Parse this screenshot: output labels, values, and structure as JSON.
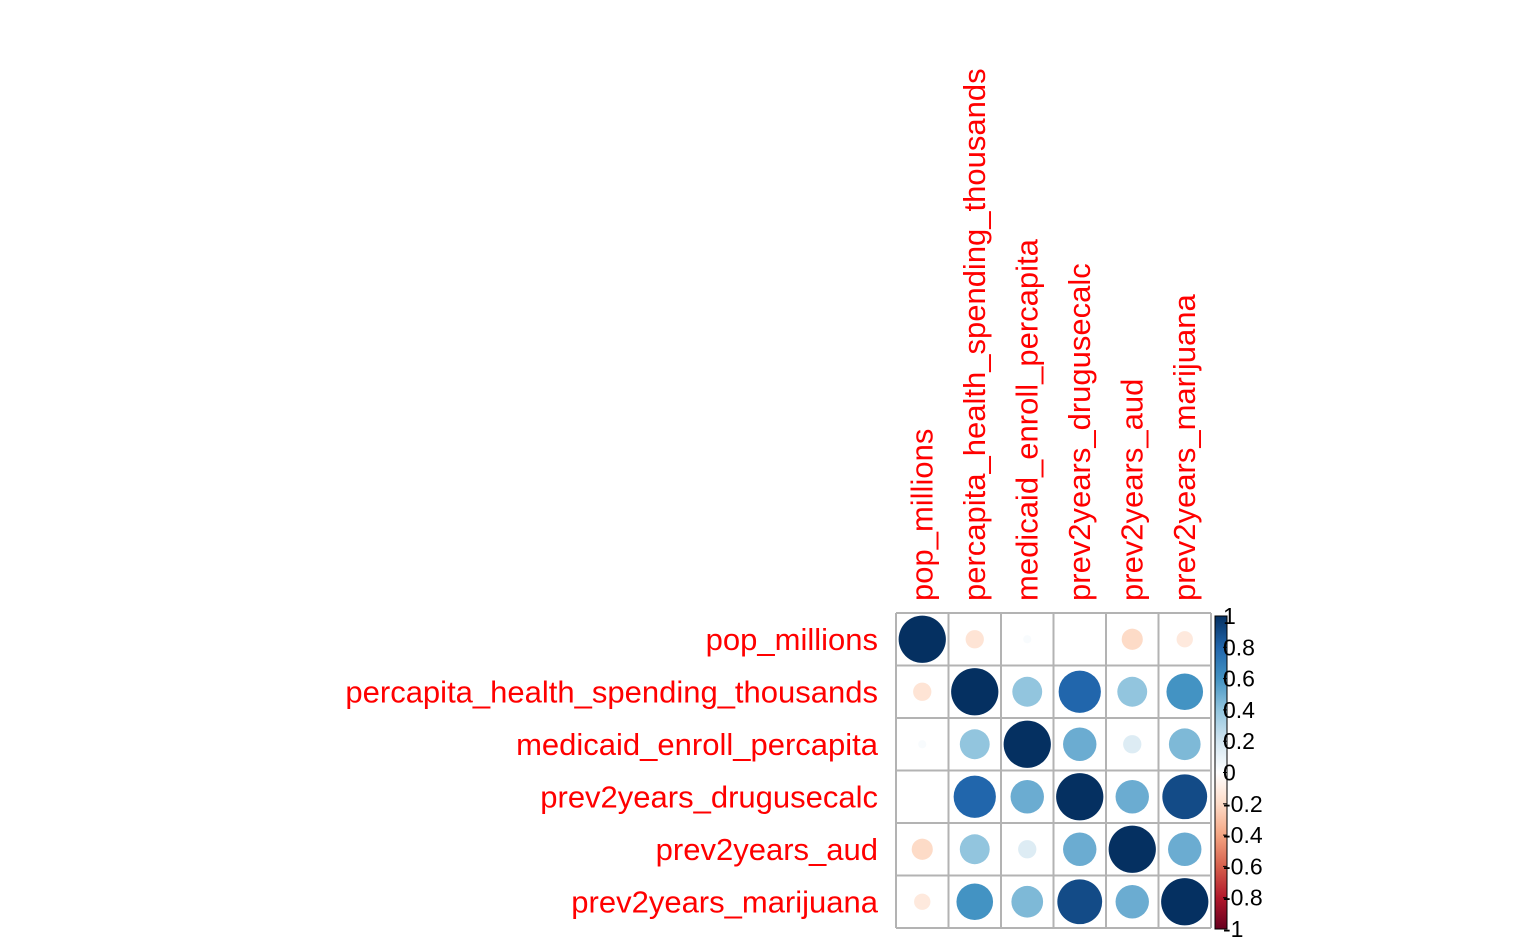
{
  "chart_data": {
    "type": "heatmap",
    "variables": [
      "pop_millions",
      "percapita_health_spending_thousands",
      "medicaid_enroll_percapita",
      "prev2years_drugusecalc",
      "prev2years_aud",
      "prev2years_marijuana"
    ],
    "matrix": [
      [
        1.0,
        -0.15,
        0.03,
        0.0,
        -0.2,
        -0.12
      ],
      [
        -0.15,
        1.0,
        0.4,
        0.8,
        0.4,
        0.6
      ],
      [
        0.03,
        0.4,
        1.0,
        0.5,
        0.15,
        0.45
      ],
      [
        0.0,
        0.8,
        0.5,
        1.0,
        0.5,
        0.9
      ],
      [
        -0.2,
        0.4,
        0.15,
        0.5,
        1.0,
        0.5
      ],
      [
        -0.12,
        0.6,
        0.45,
        0.9,
        0.5,
        1.0
      ]
    ],
    "color_scale": {
      "range": [
        -1,
        1
      ],
      "ticks": [
        "1",
        "0.8",
        "0.6",
        "0.4",
        "0.2",
        "0",
        "-0.2",
        "-0.4",
        "-0.6",
        "-0.8",
        "-1"
      ],
      "colors": [
        "#67001f",
        "#b2182b",
        "#d6604d",
        "#f4a582",
        "#fddbc7",
        "#ffffff",
        "#d1e5f0",
        "#92c5de",
        "#4393c3",
        "#2166ac",
        "#053061"
      ]
    },
    "label_color": "#ff0000",
    "grid_color": "#b3b3b3",
    "glyph": "circle",
    "legend": "right"
  }
}
